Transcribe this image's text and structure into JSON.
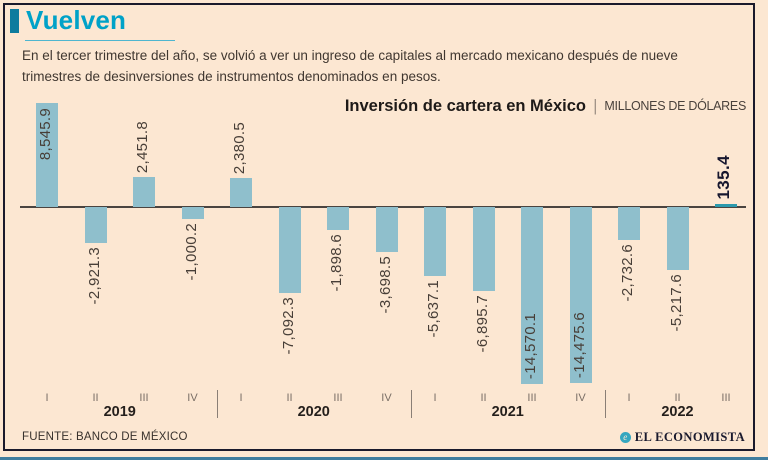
{
  "header": {
    "title": "Vuelven",
    "description_line1": "En el tercer trimestre del año, se volvió a ver un ingreso de capitales al mercado mexicano después de nueve",
    "description_line2": "trimestres de desinversiones de instrumentos denominados en pesos."
  },
  "chart_header": {
    "title": "Inversión de cartera en México",
    "separator": "|",
    "unit": "MILLONES DE DÓLARES"
  },
  "footer": {
    "source": "FUENTE: BANCO DE MÉXICO",
    "brand": "EL ECONOMISTA",
    "brand_icon": "el-economista-circle-icon"
  },
  "colors": {
    "background": "#fce7d2",
    "title_teal": "#00a2c8",
    "bullet_teal": "#0e7c9e",
    "bar_blue": "#8fbfcc",
    "highlight_teal": "#2b9aad",
    "frame_dark": "#1a1a2c",
    "text_dark": "#403730"
  },
  "chart_data": {
    "type": "bar",
    "title": "Inversión de cartera en México",
    "unit": "MILLONES DE DÓLARES",
    "grid": false,
    "legend": false,
    "ylim": [
      -15000,
      9000
    ],
    "categories": [
      "I",
      "II",
      "III",
      "IV",
      "I",
      "II",
      "III",
      "IV",
      "I",
      "II",
      "III",
      "IV",
      "I",
      "II",
      "III"
    ],
    "year_groups": [
      {
        "label": "2019",
        "span": 4
      },
      {
        "label": "2020",
        "span": 4
      },
      {
        "label": "2021",
        "span": 4
      },
      {
        "label": "2022",
        "span": 3
      }
    ],
    "values": [
      8545.9,
      -2921.3,
      2451.8,
      -1000.2,
      2380.5,
      -7092.3,
      -1898.6,
      -3698.5,
      -5637.1,
      -6895.7,
      -14570.1,
      -14475.6,
      -2732.6,
      -5217.6,
      135.4
    ],
    "value_labels": [
      "8,545.9",
      "-2,921.3",
      "2,451.8",
      "-1,000.2",
      "2,380.5",
      "-7,092.3",
      "-1,898.6",
      "-3,698.5",
      "-5,637.1",
      "-6,895.7",
      "-14,570.1",
      "-14,475.6",
      "-2,732.6",
      "-5,217.6",
      "135.4"
    ],
    "label_placement": [
      "inside-top",
      "below",
      "above",
      "below",
      "above",
      "below",
      "below",
      "below",
      "below",
      "below",
      "inside-bottom",
      "inside-bottom",
      "below",
      "below",
      "above-bold"
    ],
    "highlight_index": 14,
    "source": "FUENTE: BANCO DE MÉXICO"
  }
}
